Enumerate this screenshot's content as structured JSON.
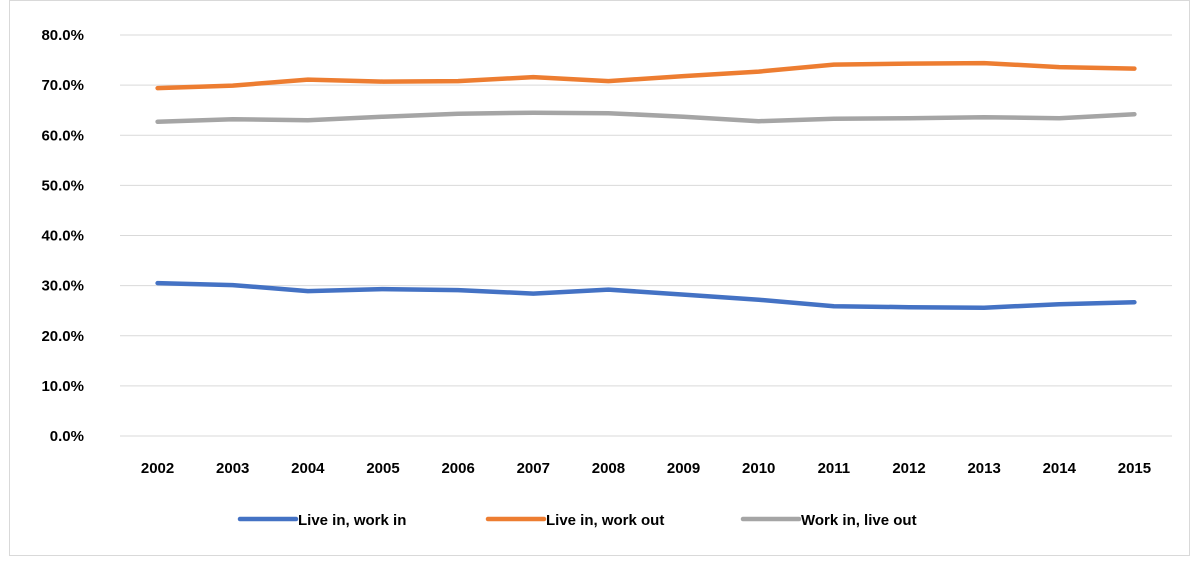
{
  "chart_data": {
    "type": "line",
    "x": [
      "2002",
      "2003",
      "2004",
      "2005",
      "2006",
      "2007",
      "2008",
      "2009",
      "2010",
      "2011",
      "2012",
      "2013",
      "2014",
      "2015"
    ],
    "y_ticks": [
      "0.0%",
      "10.0%",
      "20.0%",
      "30.0%",
      "40.0%",
      "50.0%",
      "60.0%",
      "70.0%",
      "80.0%"
    ],
    "ylim": [
      0,
      80
    ],
    "y_format": "percent_1dp",
    "grid": "horizontal",
    "legend_position": "bottom",
    "series": [
      {
        "name": "Live in, work in",
        "color": "#4472C4",
        "values": [
          30.5,
          30.1,
          28.9,
          29.3,
          29.1,
          28.4,
          29.2,
          28.2,
          27.2,
          25.9,
          25.7,
          25.6,
          26.3,
          26.7
        ]
      },
      {
        "name": "Live in, work out",
        "color": "#ED7D31",
        "values": [
          69.4,
          69.9,
          71.1,
          70.7,
          70.8,
          71.6,
          70.8,
          71.8,
          72.7,
          74.1,
          74.3,
          74.4,
          73.6,
          73.3
        ]
      },
      {
        "name": "Work in, live out",
        "color": "#A5A5A5",
        "values": [
          62.7,
          63.2,
          63.0,
          63.7,
          64.3,
          64.5,
          64.4,
          63.7,
          62.8,
          63.3,
          63.4,
          63.6,
          63.4,
          64.2
        ]
      }
    ]
  }
}
